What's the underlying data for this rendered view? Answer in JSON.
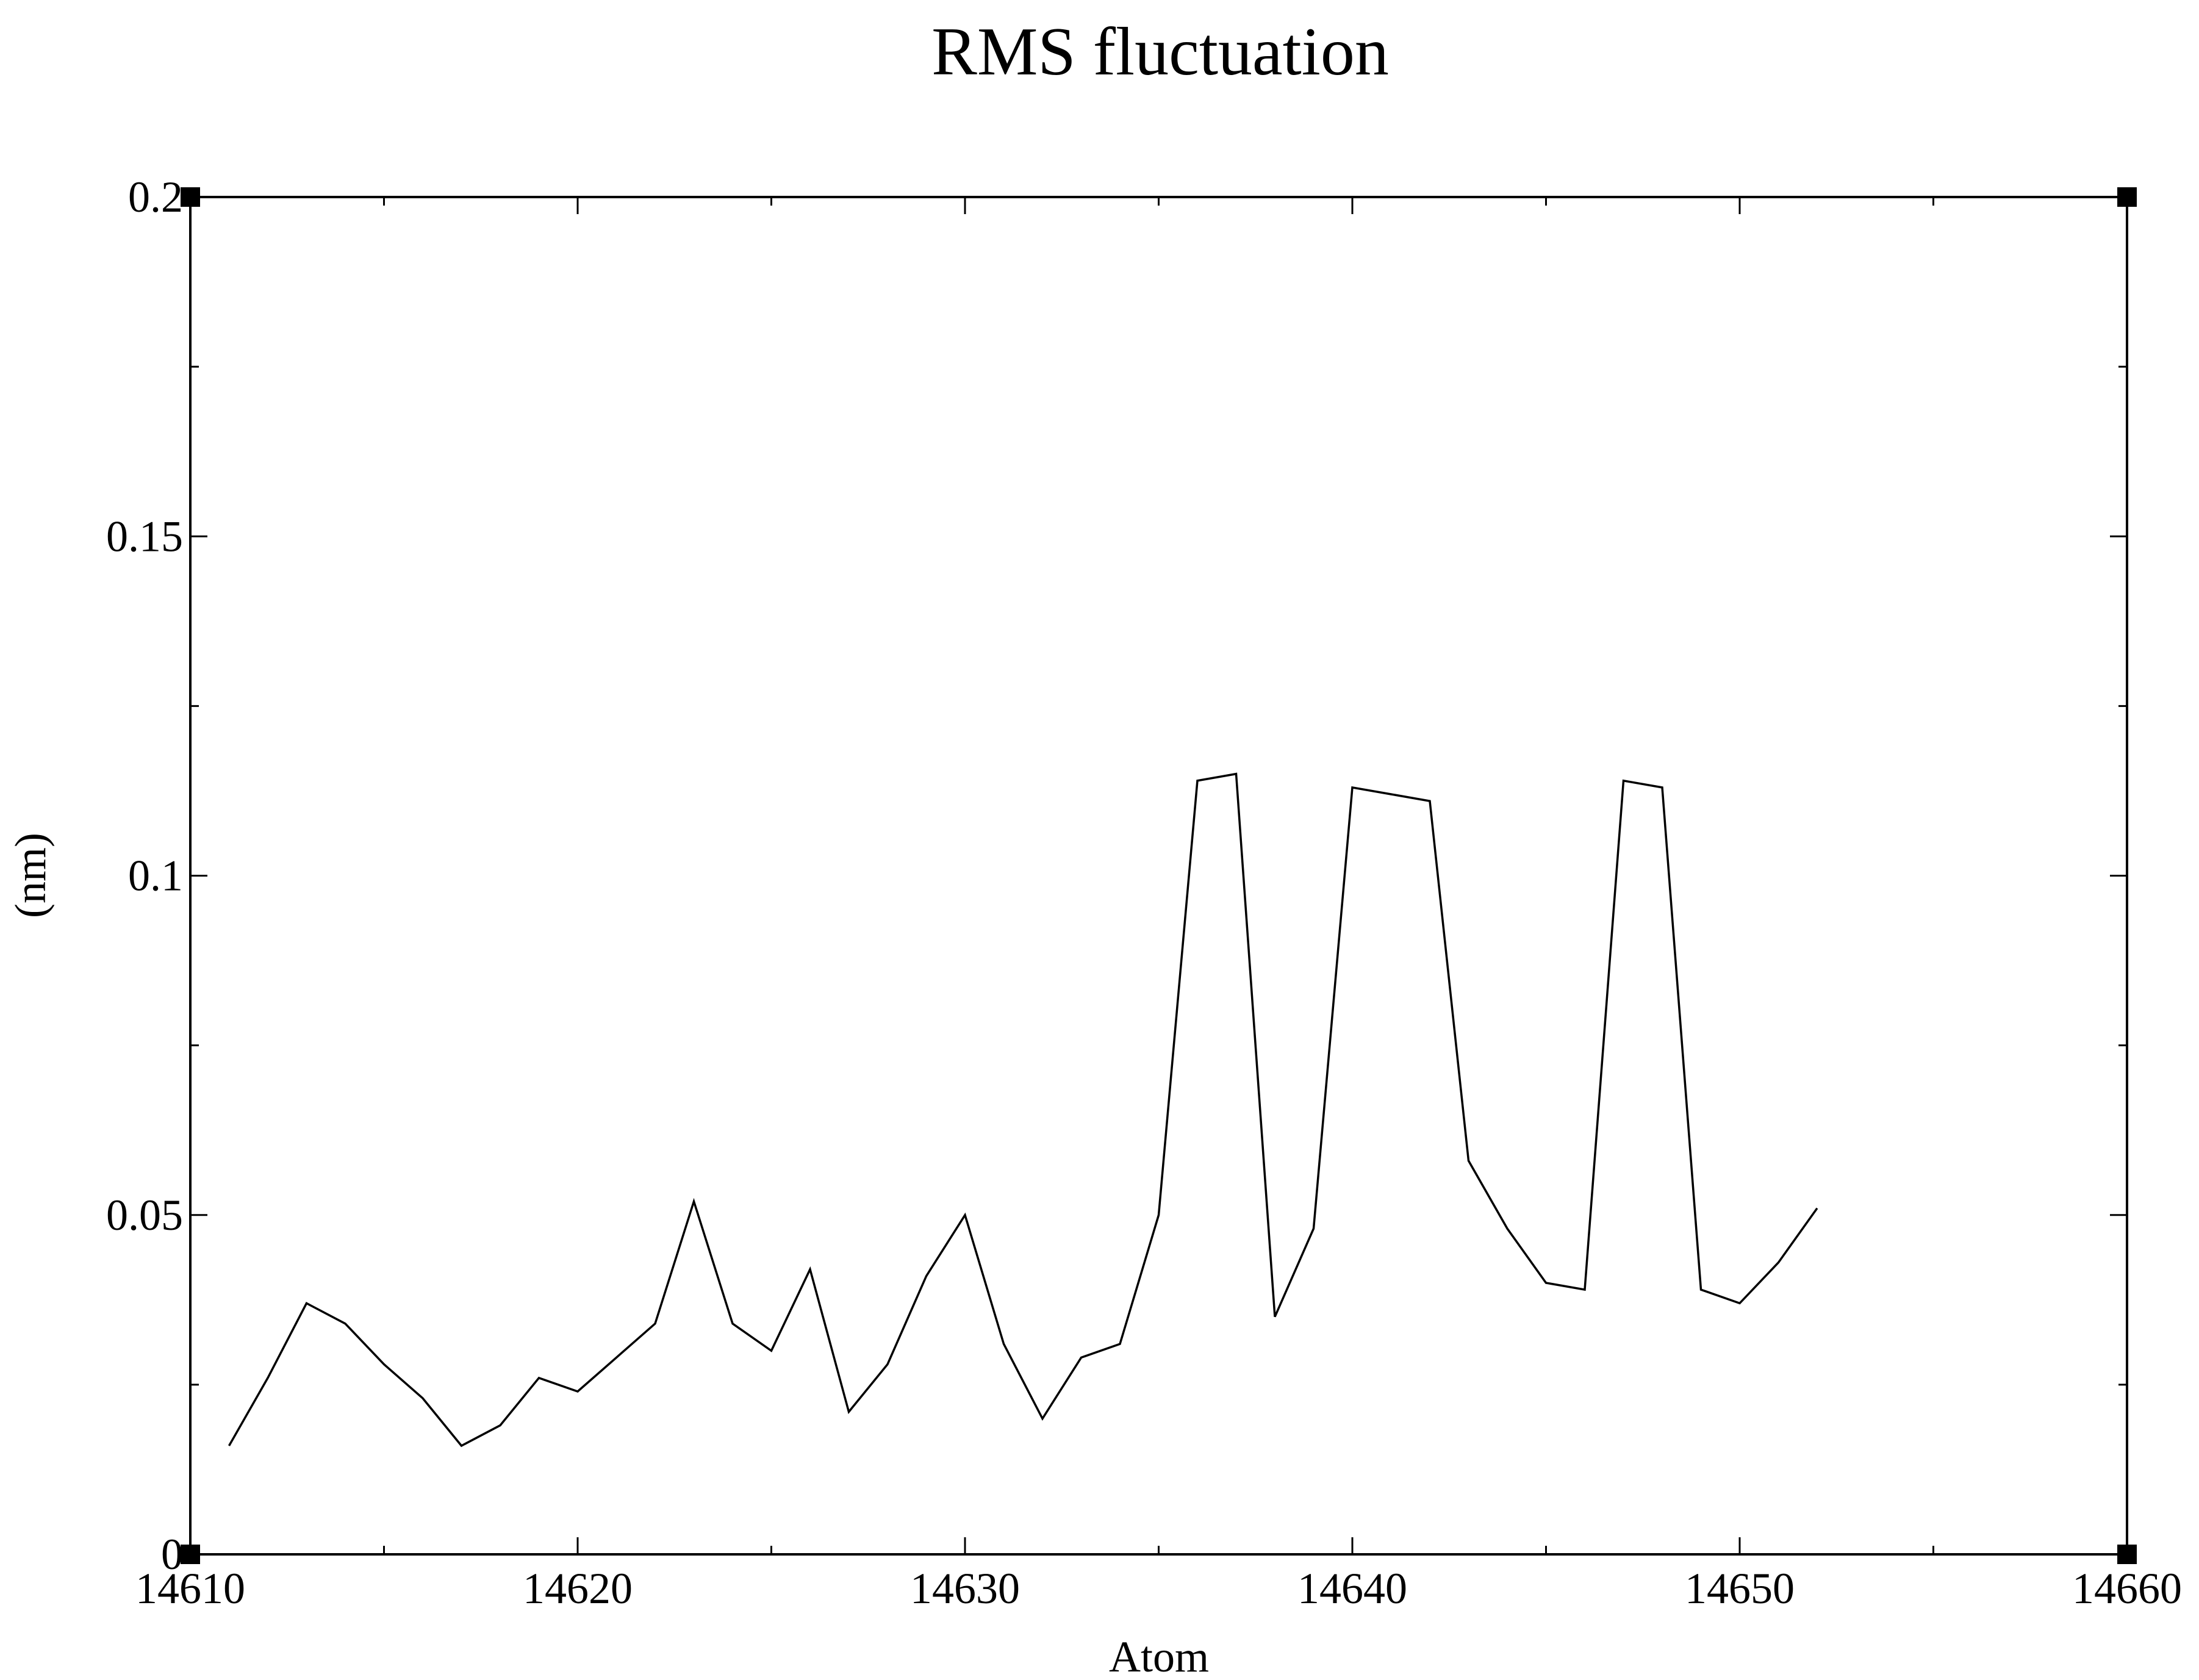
{
  "chart_data": {
    "type": "line",
    "title": "RMS fluctuation",
    "xlabel": "Atom",
    "ylabel": "(nm)",
    "xlim": [
      14610,
      14660
    ],
    "ylim": [
      0,
      0.2
    ],
    "x_major_ticks": [
      14610,
      14620,
      14630,
      14640,
      14650,
      14660
    ],
    "x_tick_labels": [
      "14610",
      "14620",
      "14630",
      "14640",
      "14650",
      "14660"
    ],
    "x_minor_ticks": [
      14615,
      14625,
      14635,
      14645,
      14655
    ],
    "y_major_ticks": [
      0,
      0.05,
      0.1,
      0.15,
      0.2
    ],
    "y_tick_labels": [
      "0",
      "0.05",
      "0.1",
      "0.15",
      "0.2"
    ],
    "y_minor_ticks": [
      0.025,
      0.075,
      0.125,
      0.175
    ],
    "grid": false,
    "legend": "none",
    "series": [
      {
        "color": "#000000",
        "x": [
          14611,
          14612,
          14613,
          14614,
          14615,
          14616,
          14617,
          14618,
          14619,
          14620,
          14621,
          14622,
          14623,
          14624,
          14625,
          14626,
          14627,
          14628,
          14629,
          14630,
          14631,
          14632,
          14633,
          14634,
          14635,
          14636,
          14637,
          14638,
          14639,
          14640,
          14641,
          14642,
          14643,
          14644,
          14645,
          14646,
          14647,
          14648,
          14649,
          14650,
          14651,
          14652
        ],
        "y": [
          0.016,
          0.026,
          0.037,
          0.034,
          0.028,
          0.023,
          0.016,
          0.019,
          0.026,
          0.024,
          0.029,
          0.034,
          0.052,
          0.034,
          0.03,
          0.042,
          0.021,
          0.028,
          0.041,
          0.05,
          0.031,
          0.02,
          0.029,
          0.031,
          0.05,
          0.114,
          0.115,
          0.035,
          0.048,
          0.113,
          0.112,
          0.111,
          0.058,
          0.048,
          0.04,
          0.039,
          0.114,
          0.113,
          0.039,
          0.037,
          0.043,
          0.051
        ]
      }
    ]
  }
}
